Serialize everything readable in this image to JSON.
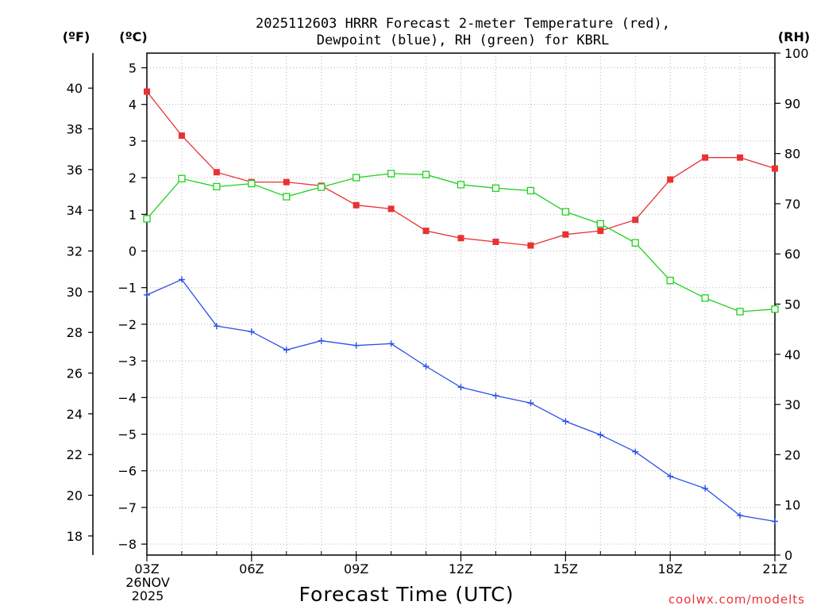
{
  "chart_data": {
    "type": "line",
    "title_line1": "2025112603 HRRR Forecast 2-meter Temperature (red),",
    "title_line2": "Dewpoint (blue), RH (green) for KBRL",
    "xlabel": "Forecast Time (UTC)",
    "units": {
      "fahrenheit": "(ºF)",
      "celsius": "(ºC)",
      "rh": "(RH)"
    },
    "x_hours": [
      3,
      4,
      5,
      6,
      7,
      8,
      9,
      10,
      11,
      12,
      13,
      14,
      15,
      16,
      17,
      18,
      19,
      20,
      21
    ],
    "xlim": [
      3,
      21
    ],
    "x_ticks": [
      {
        "hour": 3,
        "label": "03Z"
      },
      {
        "hour": 6,
        "label": "06Z"
      },
      {
        "hour": 9,
        "label": "09Z"
      },
      {
        "hour": 12,
        "label": "12Z"
      },
      {
        "hour": 15,
        "label": "15Z"
      },
      {
        "hour": 18,
        "label": "18Z"
      },
      {
        "hour": 21,
        "label": "21Z"
      }
    ],
    "date_label_1": "26NOV",
    "date_label_2": "2025",
    "celsius_axis": {
      "range": [
        -8.3,
        5.4
      ],
      "ticks": [
        5,
        4,
        3,
        2,
        1,
        0,
        -1,
        -2,
        -3,
        -4,
        -5,
        -6,
        -7,
        -8
      ],
      "tick_labels": [
        "5",
        "4",
        "3",
        "2",
        "1",
        "0",
        "−1",
        "−2",
        "−3",
        "−4",
        "−5",
        "−6",
        "−7",
        "−8"
      ]
    },
    "fahrenheit_axis": {
      "ticks": [
        40,
        38,
        36,
        34,
        32,
        30,
        28,
        26,
        24,
        22,
        20,
        18
      ],
      "tick_labels": [
        "40",
        "38",
        "36",
        "34",
        "32",
        "30",
        "28",
        "26",
        "24",
        "22",
        "20",
        "18"
      ]
    },
    "rh_axis": {
      "range": [
        0,
        100
      ],
      "ticks": [
        100,
        90,
        80,
        70,
        60,
        50,
        40,
        30,
        20,
        10,
        0
      ],
      "tick_labels": [
        "100",
        "90",
        "80",
        "70",
        "60",
        "50",
        "40",
        "30",
        "20",
        "10",
        "0"
      ]
    },
    "series": [
      {
        "name": "2-meter Temperature",
        "axis": "celsius",
        "color": "#e83232",
        "marker": "filled-square",
        "values": [
          4.35,
          3.15,
          2.15,
          1.88,
          1.88,
          1.78,
          1.25,
          1.15,
          0.55,
          0.35,
          0.25,
          0.15,
          0.45,
          0.55,
          0.85,
          1.95,
          2.55,
          2.55,
          2.25
        ]
      },
      {
        "name": "Dewpoint",
        "axis": "celsius",
        "color": "#2850e6",
        "marker": "plus",
        "values": [
          -1.2,
          -0.78,
          -2.05,
          -2.2,
          -2.7,
          -2.45,
          -2.58,
          -2.53,
          -3.15,
          -3.72,
          -3.95,
          -4.15,
          -4.65,
          -5.02,
          -5.48,
          -6.15,
          -6.48,
          -7.22,
          -7.38
        ]
      },
      {
        "name": "RH",
        "axis": "rh",
        "color": "#1ed21e",
        "marker": "open-square",
        "values": [
          67.0,
          75.0,
          73.4,
          74.0,
          71.4,
          73.3,
          75.2,
          76.0,
          75.8,
          73.8,
          73.1,
          72.6,
          68.4,
          66.0,
          62.2,
          54.7,
          51.2,
          48.5,
          49.0
        ]
      }
    ]
  },
  "credit": "coolwx.com/modelts"
}
